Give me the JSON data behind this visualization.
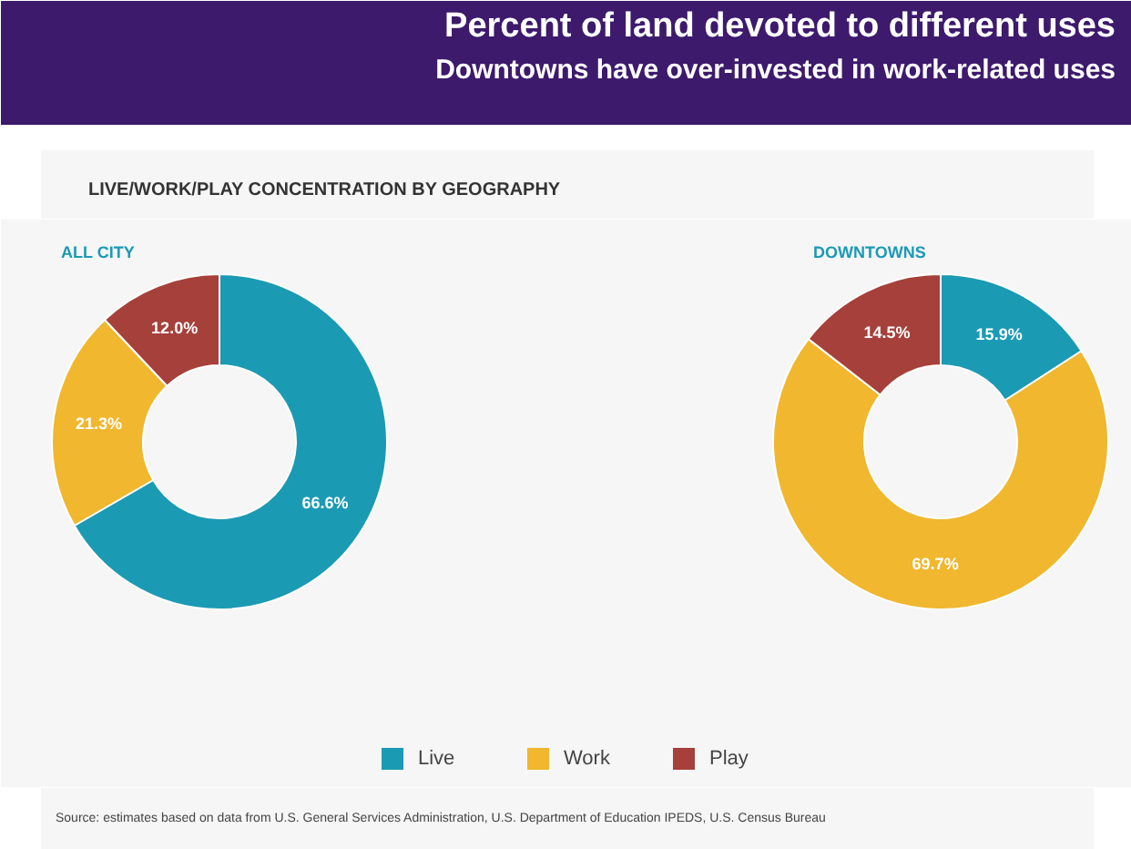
{
  "chart_data": [
    {
      "type": "other",
      "title": "Percent of land devoted to different uses",
      "subtitle": "Downtowns have over-invested in work-related uses",
      "annotations": [
        "LIVE/WORK/PLAY CONCENTRATION BY GEOGRAPHY",
        "Source: estimates based on data from U.S. General Services Administration, U.S. Department of Education IPEDS, U.S. Census Bureau"
      ]
    },
    {
      "type": "donut",
      "title": "ALL CITY",
      "categories": [
        "Live",
        "Work",
        "Play"
      ],
      "values": [
        66.6,
        21.3,
        12.0
      ],
      "colors": [
        "#1b9ab4",
        "#f0b72f",
        "#a6403a"
      ],
      "value_labels": [
        "66.6%",
        "21.3%",
        "12.0%"
      ],
      "legend": "bottom"
    },
    {
      "type": "donut",
      "title": "DOWNTOWNS",
      "categories": [
        null,
        null,
        null
      ],
      "values": [
        15.9,
        69.7,
        14.5
      ],
      "colors": [
        "#1b9ab4",
        "#f0b72f",
        "#a6403a"
      ],
      "value_labels": [
        "15.9%",
        "69.7%",
        "14.5%"
      ]
    }
  ]
}
